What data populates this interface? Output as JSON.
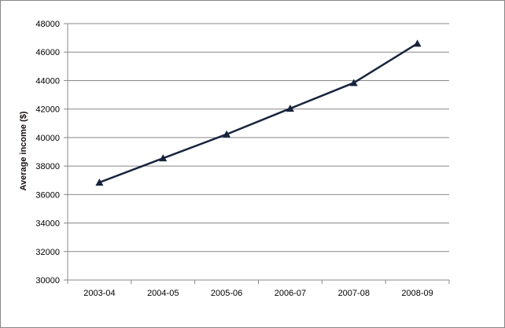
{
  "chart_data": {
    "type": "line",
    "title": "",
    "xlabel": "",
    "ylabel": "Average income ($)",
    "categories": [
      "2003-04",
      "2004-05",
      "2005-06",
      "2006-07",
      "2007-08",
      "2008-09"
    ],
    "series": [
      {
        "values": [
          36850,
          38550,
          40230,
          42040,
          43840,
          46600
        ],
        "marker": "triangle",
        "color": "#17243d"
      }
    ],
    "ylim": [
      30000,
      48000
    ],
    "yticks": [
      30000,
      32000,
      34000,
      36000,
      38000,
      40000,
      42000,
      44000,
      46000,
      48000
    ],
    "grid": "horizontal",
    "legend": "none"
  }
}
